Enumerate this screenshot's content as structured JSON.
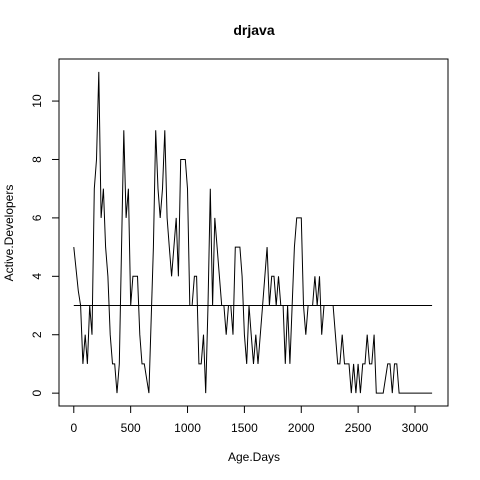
{
  "chart_data": {
    "type": "line",
    "title": "drjava",
    "xlabel": "Age.Days",
    "ylabel": "Active.Developers",
    "xlim": [
      -130,
      3290
    ],
    "ylim": [
      -0.44,
      11.44
    ],
    "x_ticks": [
      0,
      500,
      1000,
      1500,
      2000,
      2500,
      3000
    ],
    "y_ticks": [
      0,
      2,
      4,
      6,
      8,
      10
    ],
    "grid": false,
    "series": [
      {
        "values": [
          [
            0,
            5
          ],
          [
            40,
            3.5
          ],
          [
            60,
            3
          ],
          [
            80,
            1
          ],
          [
            100,
            2
          ],
          [
            120,
            1
          ],
          [
            140,
            3
          ],
          [
            160,
            2
          ],
          [
            180,
            7
          ],
          [
            200,
            8
          ],
          [
            220,
            11
          ],
          [
            240,
            6
          ],
          [
            260,
            7
          ],
          [
            280,
            5
          ],
          [
            300,
            4
          ],
          [
            320,
            2
          ],
          [
            340,
            1
          ],
          [
            360,
            1
          ],
          [
            380,
            0
          ],
          [
            400,
            1
          ],
          [
            440,
            9
          ],
          [
            460,
            6
          ],
          [
            480,
            7
          ],
          [
            500,
            3
          ],
          [
            520,
            4
          ],
          [
            540,
            4
          ],
          [
            560,
            4
          ],
          [
            580,
            2
          ],
          [
            600,
            1
          ],
          [
            620,
            1
          ],
          [
            660,
            0
          ],
          [
            700,
            5
          ],
          [
            720,
            9
          ],
          [
            740,
            7
          ],
          [
            760,
            6
          ],
          [
            780,
            7
          ],
          [
            800,
            9
          ],
          [
            820,
            6
          ],
          [
            840,
            5
          ],
          [
            860,
            4
          ],
          [
            880,
            5
          ],
          [
            900,
            6
          ],
          [
            920,
            4
          ],
          [
            940,
            8
          ],
          [
            960,
            8
          ],
          [
            980,
            8
          ],
          [
            1000,
            7
          ],
          [
            1020,
            3
          ],
          [
            1040,
            3
          ],
          [
            1060,
            4
          ],
          [
            1080,
            4
          ],
          [
            1100,
            1
          ],
          [
            1120,
            1
          ],
          [
            1140,
            2
          ],
          [
            1160,
            0
          ],
          [
            1180,
            3
          ],
          [
            1200,
            7
          ],
          [
            1220,
            3
          ],
          [
            1240,
            6
          ],
          [
            1260,
            5
          ],
          [
            1280,
            4
          ],
          [
            1300,
            3
          ],
          [
            1320,
            3
          ],
          [
            1340,
            2
          ],
          [
            1360,
            3
          ],
          [
            1380,
            3
          ],
          [
            1400,
            2
          ],
          [
            1420,
            5
          ],
          [
            1440,
            5
          ],
          [
            1460,
            5
          ],
          [
            1480,
            4
          ],
          [
            1500,
            2
          ],
          [
            1520,
            1
          ],
          [
            1540,
            3
          ],
          [
            1560,
            2
          ],
          [
            1580,
            1
          ],
          [
            1600,
            2
          ],
          [
            1620,
            1
          ],
          [
            1660,
            3
          ],
          [
            1700,
            5
          ],
          [
            1720,
            3
          ],
          [
            1740,
            4
          ],
          [
            1760,
            4
          ],
          [
            1780,
            3
          ],
          [
            1800,
            4
          ],
          [
            1820,
            3
          ],
          [
            1840,
            3
          ],
          [
            1860,
            1
          ],
          [
            1880,
            3
          ],
          [
            1900,
            1
          ],
          [
            1940,
            5
          ],
          [
            1960,
            6
          ],
          [
            1980,
            6
          ],
          [
            2000,
            6
          ],
          [
            2020,
            3
          ],
          [
            2040,
            2
          ],
          [
            2060,
            3
          ],
          [
            2080,
            3
          ],
          [
            2100,
            3
          ],
          [
            2120,
            4
          ],
          [
            2140,
            3
          ],
          [
            2160,
            4
          ],
          [
            2180,
            2
          ],
          [
            2200,
            3
          ],
          [
            2220,
            3
          ],
          [
            2240,
            3
          ],
          [
            2260,
            3
          ],
          [
            2280,
            3
          ],
          [
            2300,
            2
          ],
          [
            2320,
            1
          ],
          [
            2340,
            1
          ],
          [
            2360,
            2
          ],
          [
            2380,
            1
          ],
          [
            2400,
            1
          ],
          [
            2420,
            1
          ],
          [
            2440,
            0
          ],
          [
            2460,
            1
          ],
          [
            2480,
            0
          ],
          [
            2500,
            1
          ],
          [
            2520,
            0
          ],
          [
            2540,
            1
          ],
          [
            2560,
            1
          ],
          [
            2580,
            2
          ],
          [
            2600,
            1
          ],
          [
            2620,
            1
          ],
          [
            2640,
            2
          ],
          [
            2660,
            0
          ],
          [
            2680,
            0
          ],
          [
            2700,
            0
          ],
          [
            2720,
            0
          ],
          [
            2760,
            1
          ],
          [
            2780,
            1
          ],
          [
            2800,
            0
          ],
          [
            2820,
            1
          ],
          [
            2840,
            1
          ],
          [
            2860,
            0
          ],
          [
            2900,
            0
          ],
          [
            2950,
            0
          ],
          [
            3000,
            0
          ],
          [
            3050,
            0
          ],
          [
            3100,
            0
          ],
          [
            3150,
            0
          ]
        ]
      },
      {
        "type": "hline",
        "x_range": [
          0,
          3150
        ],
        "values": [
          3
        ]
      }
    ]
  }
}
